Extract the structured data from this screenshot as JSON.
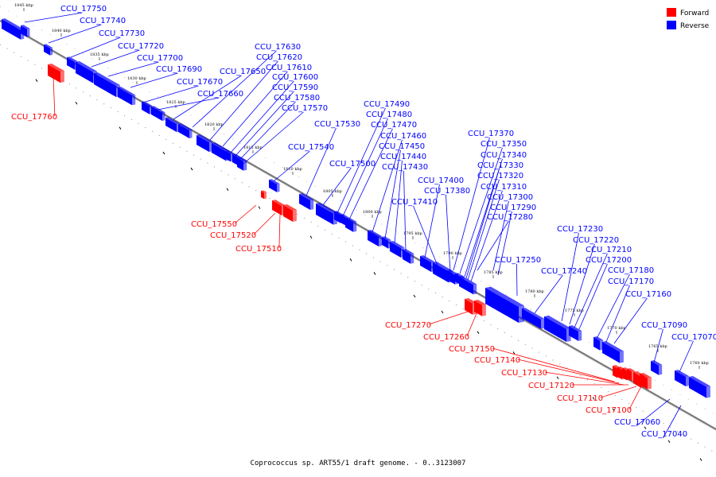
{
  "caption": "Coprococcus sp. ART55/1 draft genome. - 0..3123007",
  "legend": [
    {
      "label": "Forward",
      "color": "#ff0000"
    },
    {
      "label": "Reverse",
      "color": "#0000ff"
    }
  ],
  "colors": {
    "forward": "#ff0000",
    "reverse": "#0000ff",
    "axis": "#888888"
  },
  "scale_labels": [
    "1845 kbp",
    "1840 kbp",
    "1835 kbp",
    "1830 kbp",
    "1825 kbp",
    "1820 kbp",
    "1815 kbp",
    "1810 kbp",
    "1805 kbp",
    "1800 kbp",
    "1795 kbp",
    "1790 kbp",
    "1785 kbp",
    "1780 kbp",
    "1775 kbp",
    "1770 kbp",
    "1765 kbp",
    "1760 kbp"
  ],
  "genes": [
    {
      "name": "CCU_17750",
      "strand": "reverse"
    },
    {
      "name": "CCU_17740",
      "strand": "reverse"
    },
    {
      "name": "CCU_17730",
      "strand": "reverse"
    },
    {
      "name": "CCU_17720",
      "strand": "reverse"
    },
    {
      "name": "CCU_17700",
      "strand": "reverse"
    },
    {
      "name": "CCU_17690",
      "strand": "reverse"
    },
    {
      "name": "CCU_17670",
      "strand": "reverse"
    },
    {
      "name": "CCU_17660",
      "strand": "reverse"
    },
    {
      "name": "CCU_17760",
      "strand": "forward"
    },
    {
      "name": "CCU_17650",
      "strand": "reverse"
    },
    {
      "name": "CCU_17630",
      "strand": "reverse"
    },
    {
      "name": "CCU_17620",
      "strand": "reverse"
    },
    {
      "name": "CCU_17610",
      "strand": "reverse"
    },
    {
      "name": "CCU_17600",
      "strand": "reverse"
    },
    {
      "name": "CCU_17590",
      "strand": "reverse"
    },
    {
      "name": "CCU_17580",
      "strand": "reverse"
    },
    {
      "name": "CCU_17570",
      "strand": "reverse"
    },
    {
      "name": "CCU_17540",
      "strand": "reverse"
    },
    {
      "name": "CCU_17530",
      "strand": "reverse"
    },
    {
      "name": "CCU_17500",
      "strand": "reverse"
    },
    {
      "name": "CCU_17490",
      "strand": "reverse"
    },
    {
      "name": "CCU_17480",
      "strand": "reverse"
    },
    {
      "name": "CCU_17470",
      "strand": "reverse"
    },
    {
      "name": "CCU_17460",
      "strand": "reverse"
    },
    {
      "name": "CCU_17450",
      "strand": "reverse"
    },
    {
      "name": "CCU_17440",
      "strand": "reverse"
    },
    {
      "name": "CCU_17430",
      "strand": "reverse"
    },
    {
      "name": "CCU_17400",
      "strand": "reverse"
    },
    {
      "name": "CCU_17410",
      "strand": "reverse"
    },
    {
      "name": "CCU_17380",
      "strand": "reverse"
    },
    {
      "name": "CCU_17550",
      "strand": "forward"
    },
    {
      "name": "CCU_17520",
      "strand": "forward"
    },
    {
      "name": "CCU_17510",
      "strand": "forward"
    },
    {
      "name": "CCU_17370",
      "strand": "reverse"
    },
    {
      "name": "CCU_17350",
      "strand": "reverse"
    },
    {
      "name": "CCU_17340",
      "strand": "reverse"
    },
    {
      "name": "CCU_17330",
      "strand": "reverse"
    },
    {
      "name": "CCU_17320",
      "strand": "reverse"
    },
    {
      "name": "CCU_17310",
      "strand": "reverse"
    },
    {
      "name": "CCU_17300",
      "strand": "reverse"
    },
    {
      "name": "CCU_17290",
      "strand": "reverse"
    },
    {
      "name": "CCU_17280",
      "strand": "reverse"
    },
    {
      "name": "CCU_17250",
      "strand": "reverse"
    },
    {
      "name": "CCU_17240",
      "strand": "reverse"
    },
    {
      "name": "CCU_17230",
      "strand": "reverse"
    },
    {
      "name": "CCU_17220",
      "strand": "reverse"
    },
    {
      "name": "CCU_17210",
      "strand": "reverse"
    },
    {
      "name": "CCU_17200",
      "strand": "reverse"
    },
    {
      "name": "CCU_17180",
      "strand": "reverse"
    },
    {
      "name": "CCU_17170",
      "strand": "reverse"
    },
    {
      "name": "CCU_17160",
      "strand": "reverse"
    },
    {
      "name": "CCU_17090",
      "strand": "reverse"
    },
    {
      "name": "CCU_17070",
      "strand": "reverse"
    },
    {
      "name": "CCU_17270",
      "strand": "forward"
    },
    {
      "name": "CCU_17260",
      "strand": "forward"
    },
    {
      "name": "CCU_17150",
      "strand": "forward"
    },
    {
      "name": "CCU_17140",
      "strand": "forward"
    },
    {
      "name": "CCU_17130",
      "strand": "forward"
    },
    {
      "name": "CCU_17120",
      "strand": "forward"
    },
    {
      "name": "CCU_17110",
      "strand": "forward"
    },
    {
      "name": "CCU_17100",
      "strand": "forward"
    },
    {
      "name": "CCU_17060",
      "strand": "reverse"
    },
    {
      "name": "CCU_17040",
      "strand": "reverse"
    }
  ]
}
